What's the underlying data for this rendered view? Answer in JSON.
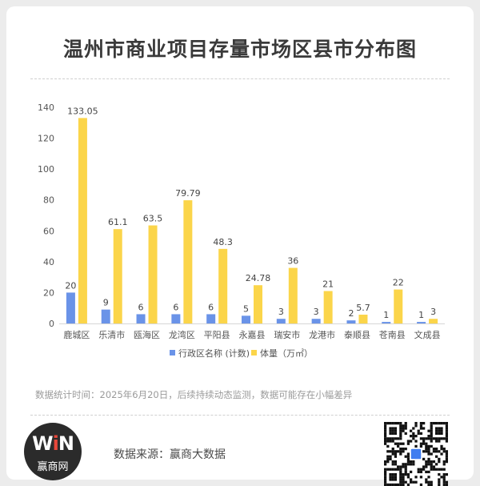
{
  "title": "温州市商业项目存量市场区县市分布图",
  "colors": {
    "count": "#6a93e8",
    "volume": "#fbd54a",
    "axis_text": "#555555",
    "label_text": "#444444"
  },
  "chart_data": {
    "type": "bar",
    "categories": [
      "鹿城区",
      "乐清市",
      "瓯海区",
      "龙湾区",
      "平阳县",
      "永嘉县",
      "瑞安市",
      "龙港市",
      "泰顺县",
      "苍南县",
      "文成县"
    ],
    "series": [
      {
        "name": "行政区名称 (计数)",
        "values": [
          20,
          9,
          6,
          6,
          6,
          5,
          3,
          3,
          2,
          1,
          1
        ],
        "labels": [
          "20",
          "9",
          "6",
          "6",
          "6",
          "5",
          "3",
          "3",
          "2",
          "1",
          "1"
        ]
      },
      {
        "name": "体量（万㎡）",
        "values": [
          133.05,
          61.1,
          63.5,
          79.79,
          48.3,
          24.78,
          36,
          21,
          5.7,
          22,
          3
        ],
        "labels": [
          "133.05",
          "61.1",
          "63.5",
          "79.79",
          "48.3",
          "24.78",
          "36",
          "21",
          "5.7",
          "22",
          "3"
        ]
      }
    ],
    "yticks": [
      "0",
      "20",
      "40",
      "60",
      "80",
      "100",
      "120",
      "140"
    ],
    "ylim": [
      0,
      140
    ],
    "legend_position": "bottom",
    "grid": false
  },
  "note": "数据统计时间：2025年6月20日，后续持续动态监测，数据可能存在小幅差异",
  "footer": {
    "logo_mark_left": "W",
    "logo_mark_accent": "i",
    "logo_mark_right": "N",
    "logo_text": "赢商网",
    "source": "数据来源：赢商大数据",
    "qr_icon": "qr-code-icon"
  }
}
